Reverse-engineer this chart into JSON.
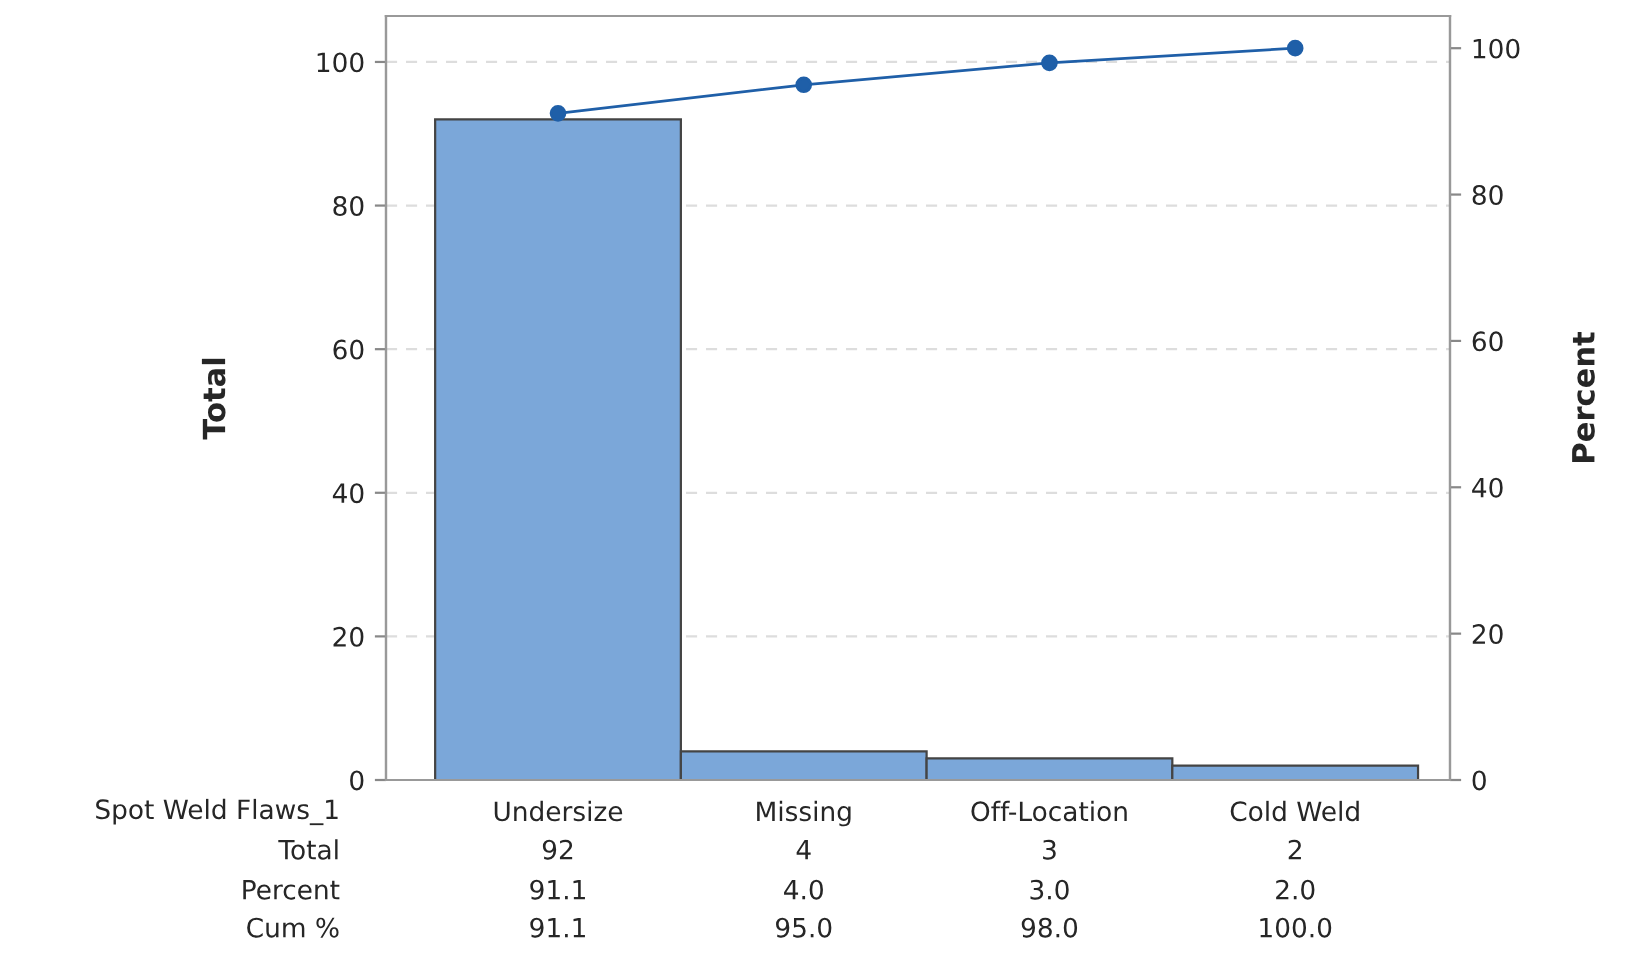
{
  "chart_data": {
    "type": "bar",
    "xlabel": "Spot Weld Flaws_1",
    "ylabel": "Total",
    "y2label": "Percent",
    "categories": [
      "Undersize",
      "Missing",
      "Off-Location",
      "Cold Weld"
    ],
    "series": [
      {
        "color": "#7ba7d9",
        "values": [
          92,
          4,
          3,
          2
        ],
        "value_labels": [
          "92",
          "4",
          "3",
          "2"
        ]
      },
      {
        "type": "line",
        "axis": "y2",
        "color": "#1f5fa8",
        "marker": "circle",
        "values": [
          91.1,
          95.0,
          98.0,
          100.0
        ],
        "value_labels": [
          "91.1",
          "95.0",
          "98.0",
          "100.0"
        ]
      }
    ],
    "annotations": [
      "Total",
      "Percent",
      "91.1",
      "4.0",
      "3.0",
      "2.0",
      "Cum %"
    ],
    "ylim": [
      0,
      106.4
    ],
    "yticks": [
      0,
      20,
      40,
      60,
      80,
      100
    ],
    "y2lim": [
      0,
      104.4
    ],
    "y2ticks": [
      0,
      20,
      40,
      60,
      80,
      100
    ],
    "grid": "y",
    "legend": false
  }
}
